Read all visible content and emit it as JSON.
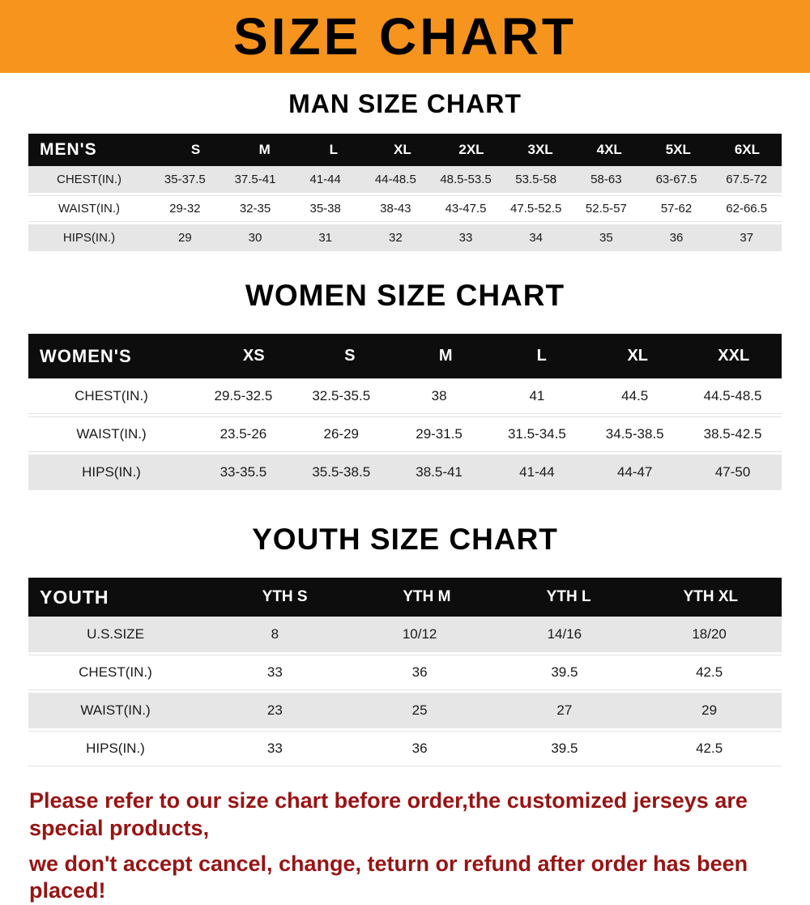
{
  "banner": {
    "title": "SIZE CHART",
    "bg_color": "#f7941d",
    "text_color": "#000000"
  },
  "men": {
    "heading": "MAN SIZE CHART",
    "header": [
      "MEN'S",
      "S",
      "M",
      "L",
      "XL",
      "2XL",
      "3XL",
      "4XL",
      "5XL",
      "6XL"
    ],
    "rows": [
      {
        "label": "CHEST(IN.)",
        "values": [
          "35-37.5",
          "37.5-41",
          "41-44",
          "44-48.5",
          "48.5-53.5",
          "53.5-58",
          "58-63",
          "63-67.5",
          "67.5-72"
        ]
      },
      {
        "label": "WAIST(IN.)",
        "values": [
          "29-32",
          "32-35",
          "35-38",
          "38-43",
          "43-47.5",
          "47.5-52.5",
          "52.5-57",
          "57-62",
          "62-66.5"
        ]
      },
      {
        "label": "HIPS(IN.)",
        "values": [
          "29",
          "30",
          "31",
          "32",
          "33",
          "34",
          "35",
          "36",
          "37"
        ]
      }
    ]
  },
  "women": {
    "heading": "WOMEN SIZE CHART",
    "header": [
      "WOMEN'S",
      "XS",
      "S",
      "M",
      "L",
      "XL",
      "XXL"
    ],
    "rows": [
      {
        "label": "CHEST(IN.)",
        "values": [
          "29.5-32.5",
          "32.5-35.5",
          "38",
          "41",
          "44.5",
          "44.5-48.5"
        ]
      },
      {
        "label": "WAIST(IN.)",
        "values": [
          "23.5-26",
          "26-29",
          "29-31.5",
          "31.5-34.5",
          "34.5-38.5",
          "38.5-42.5"
        ]
      },
      {
        "label": "HIPS(IN.)",
        "values": [
          "33-35.5",
          "35.5-38.5",
          "38.5-41",
          "41-44",
          "44-47",
          "47-50"
        ]
      }
    ]
  },
  "youth": {
    "heading": "YOUTH SIZE CHART",
    "header": [
      "YOUTH",
      "YTH S",
      "YTH M",
      "YTH L",
      "YTH XL"
    ],
    "rows": [
      {
        "label": "U.S.SIZE",
        "values": [
          "8",
          "10/12",
          "14/16",
          "18/20"
        ]
      },
      {
        "label": "CHEST(IN.)",
        "values": [
          "33",
          "36",
          "39.5",
          "42.5"
        ]
      },
      {
        "label": "WAIST(IN.)",
        "values": [
          "23",
          "25",
          "27",
          "29"
        ]
      },
      {
        "label": "HIPS(IN.)",
        "values": [
          "33",
          "36",
          "39.5",
          "42.5"
        ]
      }
    ]
  },
  "footer": {
    "line1": "Please refer to our size chart before order,the customized jerseys are special products,",
    "line2": "we don't accept cancel, change, teturn or refund after order has been placed!",
    "color": "#981414"
  }
}
